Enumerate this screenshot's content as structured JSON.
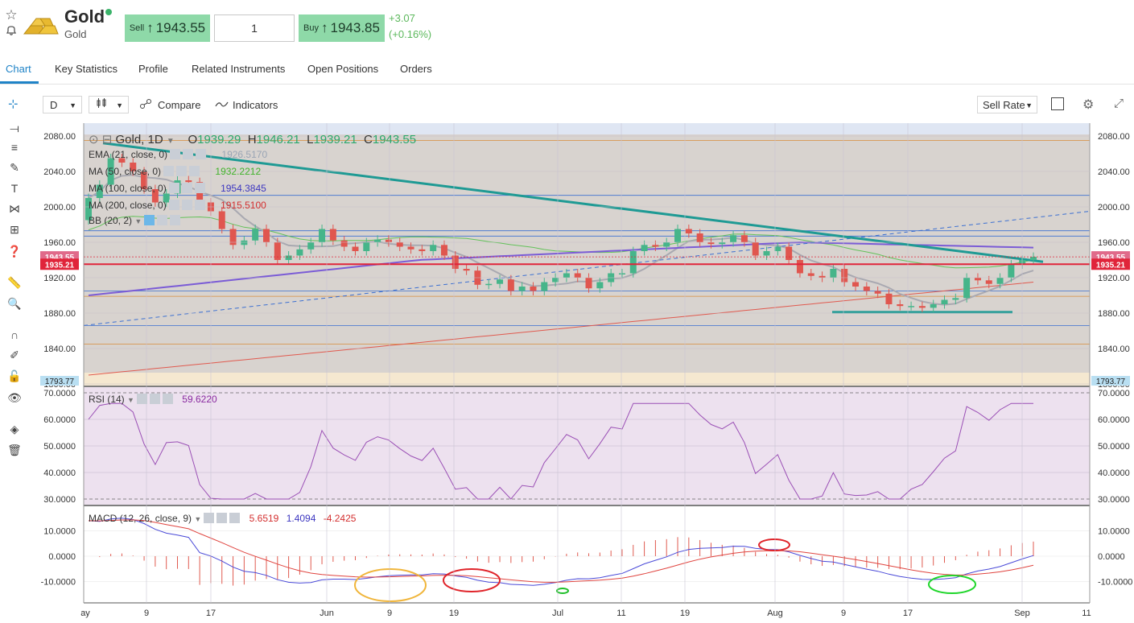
{
  "instrument": {
    "name": "Gold",
    "subname": "Gold"
  },
  "trade": {
    "sell_label": "Sell",
    "sell_price": "1943.55",
    "quantity": "1",
    "buy_label": "Buy",
    "buy_price": "1943.85",
    "change": "+3.07",
    "change_pct": "(+0.16%)",
    "arrow": "↑"
  },
  "tabs": [
    "Chart",
    "Key Statistics",
    "Profile",
    "Related Instruments",
    "Open Positions",
    "Orders"
  ],
  "toolbar": {
    "interval": "D",
    "compare": "Compare",
    "indicators": "Indicators",
    "rate": "Sell Rate"
  },
  "ohlc": {
    "symbol": "Gold, 1D",
    "o_label": "O",
    "o": "1939.29",
    "h_label": "H",
    "h": "1946.21",
    "l_label": "L",
    "l": "1939.21",
    "c_label": "C",
    "c": "1943.55"
  },
  "studies": [
    {
      "name": "EMA (21, close, 0)",
      "value": "1926.5170",
      "color": "#9aa5b5"
    },
    {
      "name": "MA (50, close, 0)",
      "value": "1932.2212",
      "color": "#4caf50"
    },
    {
      "name": "MA (100, close, 0)",
      "value": "1954.3845",
      "color": "#5b56c9"
    },
    {
      "name": "MA (200, close, 0)",
      "value": "1915.5100",
      "color": "#e53935"
    },
    {
      "name": "BB (20, 2)",
      "value": "",
      "color": "#333333"
    }
  ],
  "rsi": {
    "name": "RSI (14)",
    "value": "59.6220"
  },
  "macd": {
    "name": "MACD (12, 26, close, 9)",
    "v1": "5.6519",
    "v2": "1.4094",
    "v3": "-4.2425"
  },
  "price_axis": [
    "2080.00",
    "2040.00",
    "2000.00",
    "1960.00",
    "1920.00",
    "1880.00",
    "1840.00",
    "1800.00"
  ],
  "price_labels": {
    "current": "1943.55",
    "line": "1935.21",
    "low_bound": "1793.77"
  },
  "rsi_axis": [
    "70.0000",
    "60.0000",
    "50.0000",
    "40.0000",
    "30.0000"
  ],
  "macd_axis": [
    "10.0000",
    "0.0000",
    "-10.0000"
  ],
  "date_axis": [
    "ay",
    "9",
    "17",
    "Jun",
    "9",
    "19",
    "Jul",
    "11",
    "19",
    "Aug",
    "9",
    "17",
    "Sep",
    "11"
  ],
  "colors": {
    "up": "#46b58a",
    "down": "#e0564f",
    "accent": "#1f83c7",
    "trend": "#1e9a94"
  },
  "chart_data": {
    "type": "candlestick",
    "dates": [
      "May-06",
      "May-07",
      "May-08",
      "May-09",
      "May-10",
      "May-11",
      "May-14",
      "May-15",
      "May-16",
      "May-17",
      "May-18",
      "May-21",
      "May-22",
      "May-23",
      "May-24",
      "May-25",
      "May-28",
      "May-29",
      "May-30",
      "May-31",
      "Jun-01",
      "Jun-04",
      "Jun-05",
      "Jun-06",
      "Jun-07",
      "Jun-08",
      "Jun-11",
      "Jun-12",
      "Jun-13",
      "Jun-14",
      "Jun-15",
      "Jun-18",
      "Jun-19",
      "Jun-20",
      "Jun-21",
      "Jun-22",
      "Jun-25",
      "Jun-26",
      "Jun-27",
      "Jun-28",
      "Jun-29",
      "Jul-02",
      "Jul-03",
      "Jul-04",
      "Jul-05",
      "Jul-06",
      "Jul-09",
      "Jul-10",
      "Jul-11",
      "Jul-12",
      "Jul-13",
      "Jul-16",
      "Jul-17",
      "Jul-18",
      "Jul-19",
      "Jul-20",
      "Jul-23",
      "Jul-24",
      "Jul-25",
      "Jul-26",
      "Jul-27",
      "Jul-30",
      "Jul-31",
      "Aug-01",
      "Aug-02",
      "Aug-03",
      "Aug-06",
      "Aug-07",
      "Aug-08",
      "Aug-09",
      "Aug-10",
      "Aug-13",
      "Aug-14",
      "Aug-15",
      "Aug-16",
      "Aug-17",
      "Aug-20",
      "Aug-21",
      "Aug-22",
      "Aug-23",
      "Aug-24",
      "Aug-27",
      "Aug-28",
      "Aug-29",
      "Aug-30",
      "Aug-31"
    ],
    "open": [
      1985,
      2010,
      2025,
      2055,
      2050,
      2040,
      2020,
      2005,
      2015,
      2030,
      2028,
      2005,
      1995,
      1975,
      1957,
      1962,
      1975,
      1960,
      1940,
      1945,
      1952,
      1960,
      1975,
      1962,
      1955,
      1950,
      1960,
      1963,
      1960,
      1955,
      1952,
      1950,
      1957,
      1945,
      1930,
      1928,
      1912,
      1913,
      1918,
      1905,
      1910,
      1905,
      1915,
      1920,
      1925,
      1920,
      1908,
      1915,
      1925,
      1925,
      1950,
      1957,
      1955,
      1960,
      1975,
      1970,
      1960,
      1958,
      1960,
      1968,
      1960,
      1945,
      1950,
      1955,
      1940,
      1925,
      1922,
      1920,
      1930,
      1915,
      1910,
      1905,
      1902,
      1890,
      1888,
      1888,
      1886,
      1890,
      1895,
      1897,
      1920,
      1917,
      1913,
      1920,
      1935,
      1940
    ],
    "close": [
      2010,
      2025,
      2055,
      2050,
      2040,
      2020,
      2005,
      2015,
      2030,
      2028,
      2005,
      1995,
      1975,
      1957,
      1962,
      1975,
      1960,
      1940,
      1945,
      1952,
      1960,
      1975,
      1962,
      1955,
      1950,
      1960,
      1963,
      1960,
      1955,
      1952,
      1950,
      1957,
      1945,
      1930,
      1928,
      1912,
      1913,
      1918,
      1905,
      1910,
      1905,
      1915,
      1920,
      1925,
      1920,
      1908,
      1915,
      1925,
      1925,
      1950,
      1957,
      1955,
      1960,
      1975,
      1970,
      1960,
      1958,
      1960,
      1968,
      1960,
      1945,
      1950,
      1955,
      1940,
      1925,
      1922,
      1920,
      1930,
      1915,
      1910,
      1905,
      1902,
      1890,
      1888,
      1888,
      1886,
      1890,
      1895,
      1897,
      1920,
      1917,
      1913,
      1920,
      1935,
      1940,
      1943.55
    ],
    "ylim": [
      1793.77,
      2090
    ]
  }
}
